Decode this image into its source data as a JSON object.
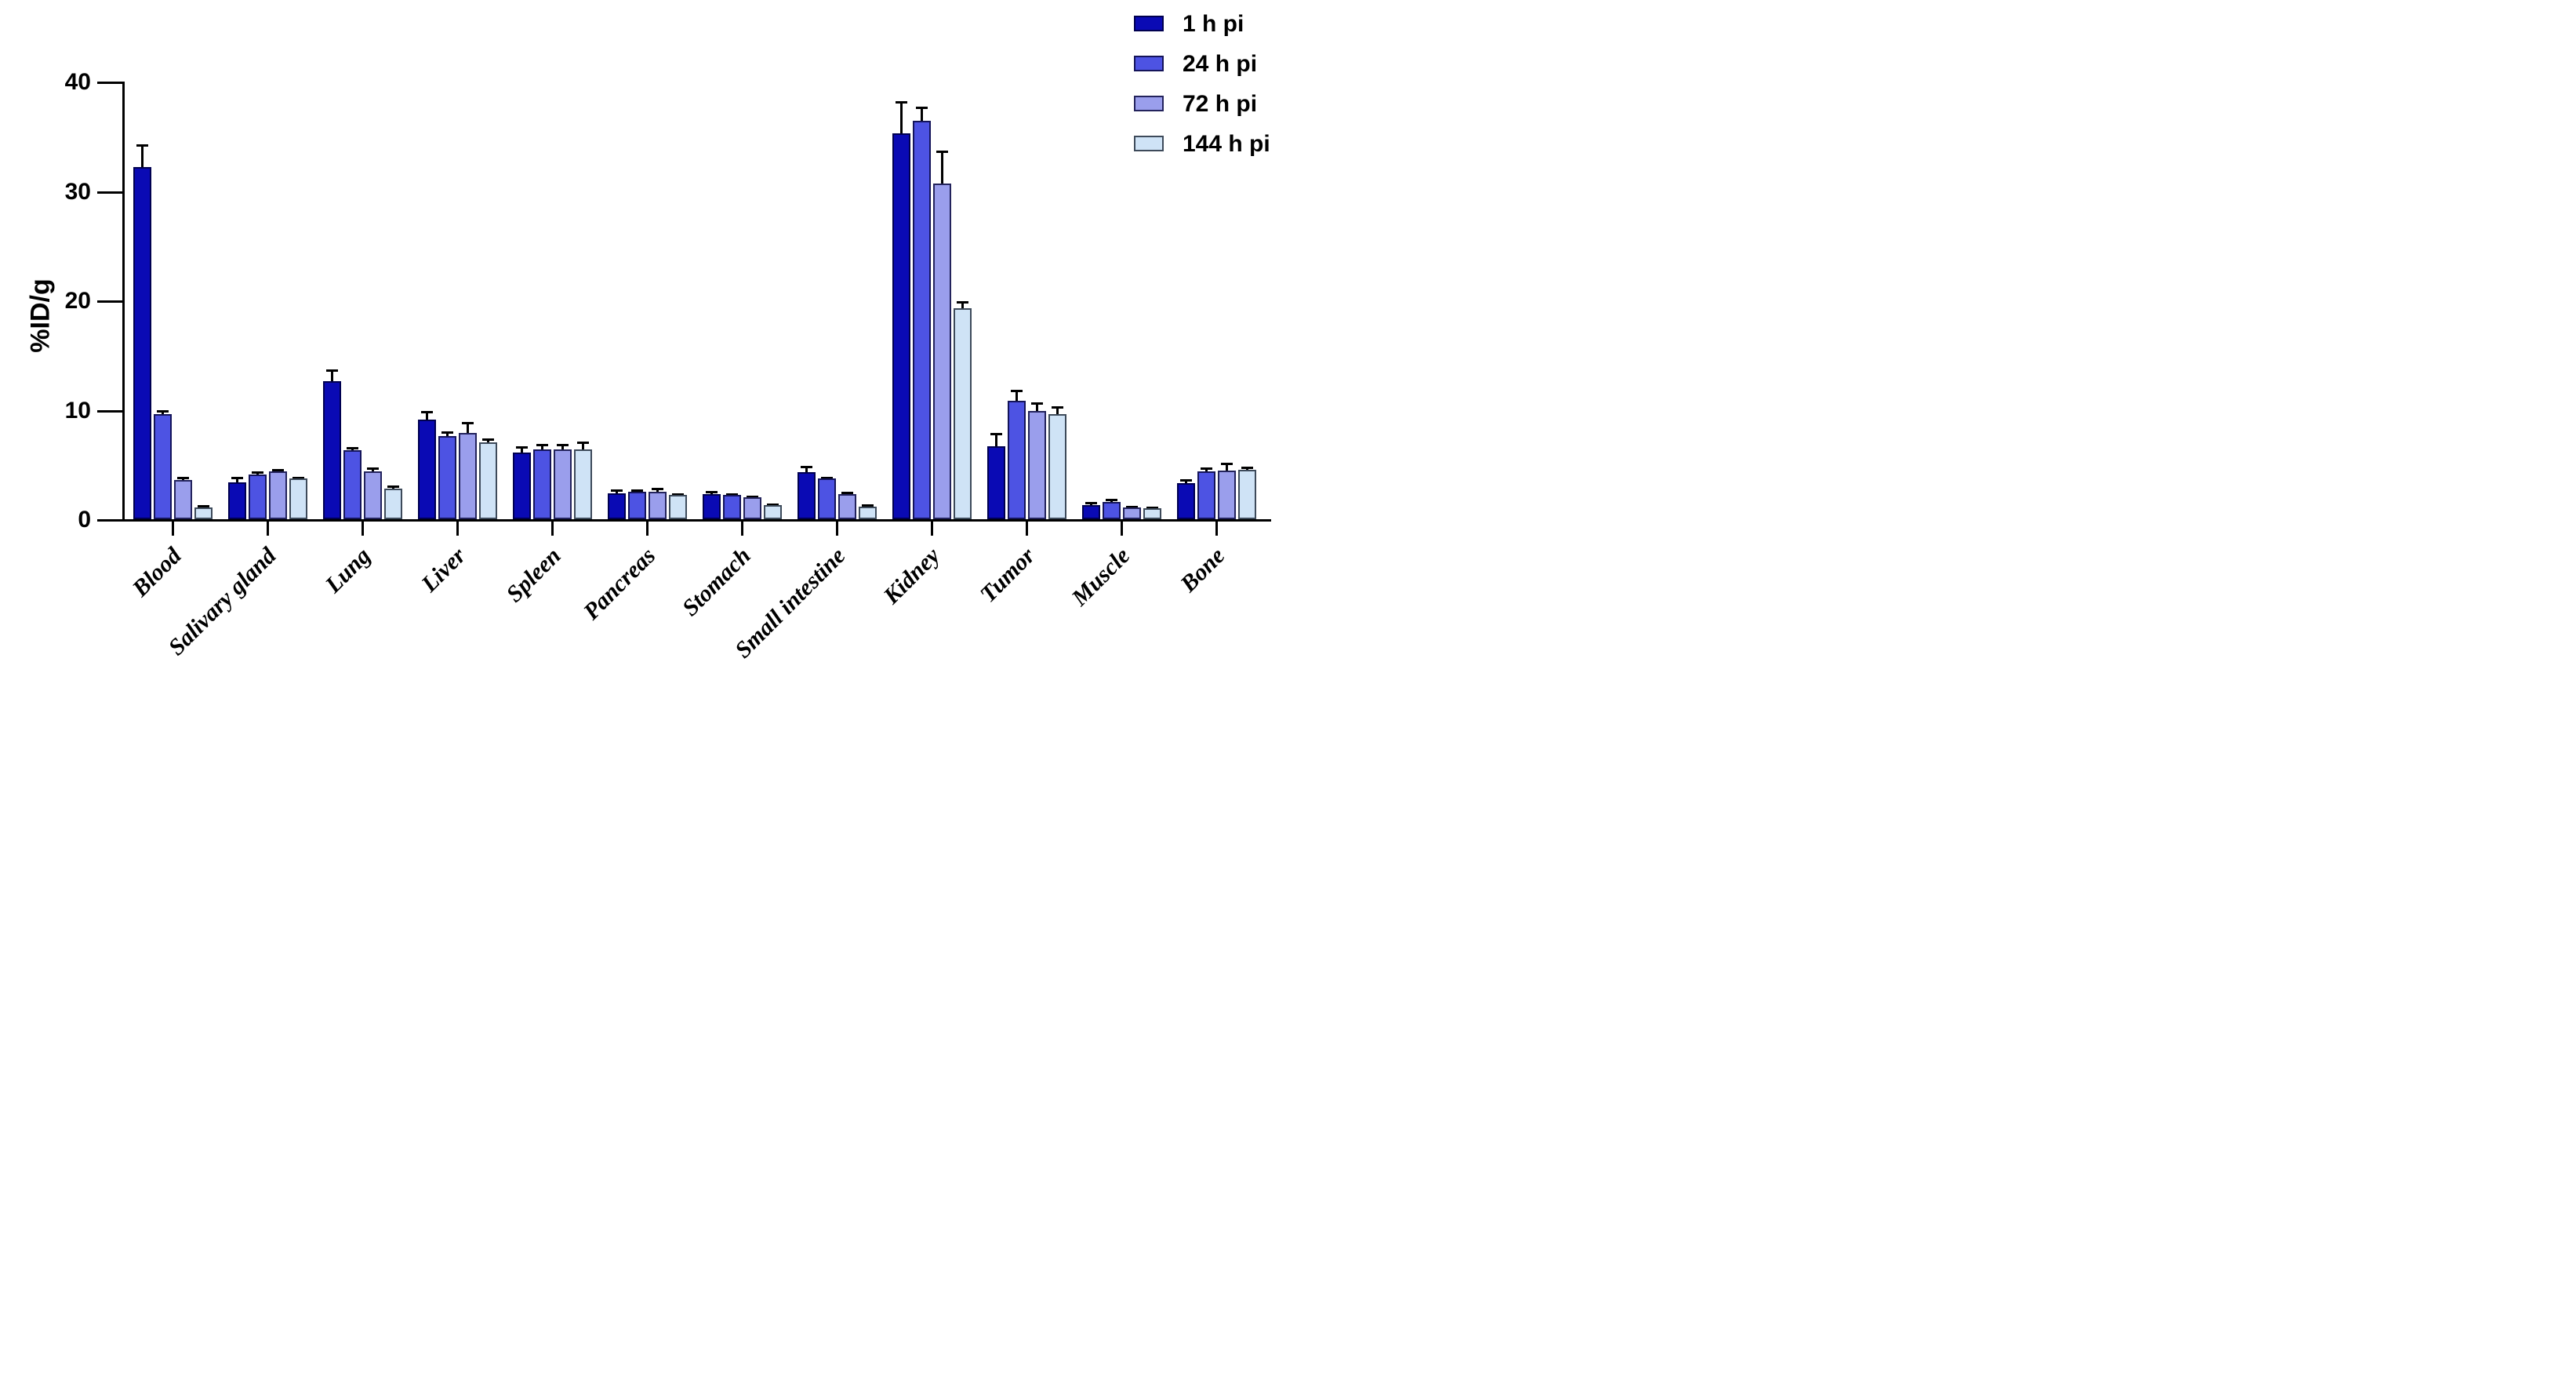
{
  "figure": {
    "background": "#ffffff"
  },
  "chart_data": {
    "type": "bar",
    "title": "",
    "xlabel": "",
    "ylabel": "%ID/g",
    "ylim": [
      0,
      40
    ],
    "yticks": [
      0,
      10,
      20,
      30,
      40
    ],
    "grid": false,
    "legend_position": "top-right",
    "categories": [
      "Blood",
      "Salivary gland",
      "Lung",
      "Liver",
      "Spleen",
      "Pancreas",
      "Stomach",
      "Small intestine",
      "Kidney",
      "Tumor",
      "Muscle",
      "Bone"
    ],
    "series": [
      {
        "name": "1 h pi",
        "color": "#0a0ab4",
        "border_color": "#000050",
        "values": [
          32.2,
          3.4,
          12.6,
          9.1,
          6.1,
          2.4,
          2.3,
          4.3,
          35.3,
          6.7,
          1.3,
          3.3
        ],
        "errors": [
          2.1,
          0.5,
          1.1,
          0.8,
          0.6,
          0.35,
          0.3,
          0.6,
          2.9,
          1.2,
          0.25,
          0.35
        ]
      },
      {
        "name": "24 h pi",
        "color": "#4d53e3",
        "border_color": "#14145a",
        "values": [
          9.6,
          4.1,
          6.3,
          7.6,
          6.4,
          2.5,
          2.2,
          3.7,
          36.4,
          10.8,
          1.6,
          4.4
        ],
        "errors": [
          0.4,
          0.3,
          0.3,
          0.4,
          0.45,
          0.2,
          0.2,
          0.2,
          1.3,
          1.0,
          0.25,
          0.3
        ]
      },
      {
        "name": "72 h pi",
        "color": "#9a9eec",
        "border_color": "#23235c",
        "values": [
          3.6,
          4.4,
          4.4,
          7.9,
          6.4,
          2.5,
          2.0,
          2.3,
          30.7,
          9.9,
          1.05,
          4.45
        ],
        "errors": [
          0.3,
          0.2,
          0.3,
          1.0,
          0.45,
          0.35,
          0.15,
          0.2,
          3.0,
          0.8,
          0.2,
          0.7
        ]
      },
      {
        "name": "144 h pi",
        "color": "#cfe3f6",
        "border_color": "#3d4a5a",
        "values": [
          1.05,
          3.7,
          2.8,
          7.0,
          6.4,
          2.2,
          1.3,
          1.15,
          19.3,
          9.6,
          1.0,
          4.5
        ],
        "errors": [
          0.25,
          0.2,
          0.3,
          0.4,
          0.7,
          0.2,
          0.1,
          0.2,
          0.6,
          0.7,
          0.15,
          0.3
        ]
      }
    ]
  }
}
